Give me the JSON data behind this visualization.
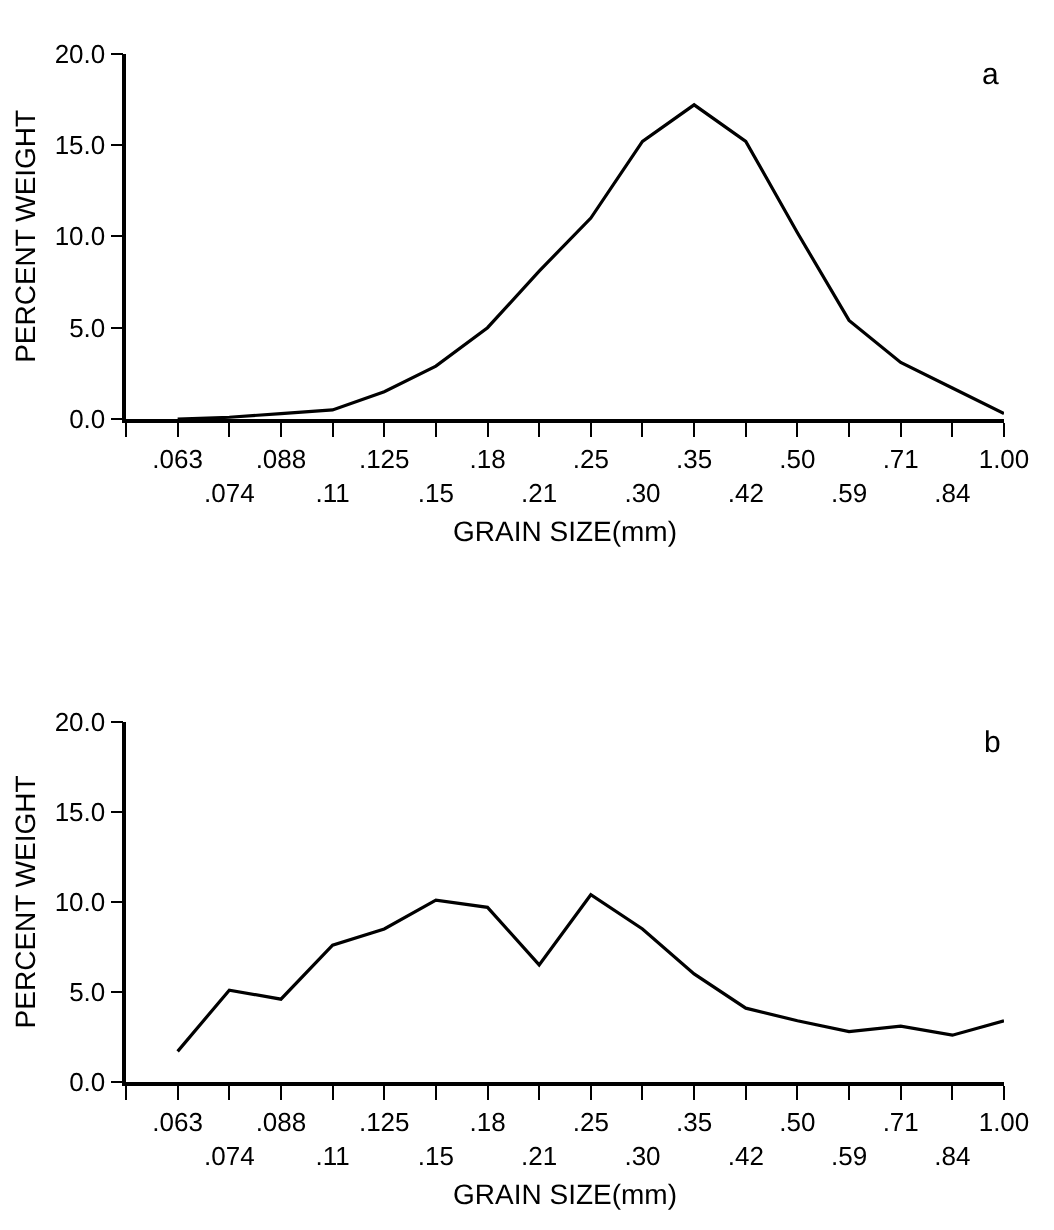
{
  "chart_data": [
    {
      "type": "line",
      "xlabel": "GRAIN SIZE(mm)",
      "ylabel": "PERCENT WEIGHT",
      "annotations": [
        "a"
      ],
      "categories": [
        null,
        ".063",
        ".074",
        ".088",
        ".11",
        ".125",
        ".15",
        ".18",
        ".21",
        ".25",
        ".30",
        ".35",
        ".42",
        ".50",
        ".59",
        ".71",
        ".84",
        "1.00"
      ],
      "series": [
        {
          "color": "#000000",
          "values": [
            null,
            0.0,
            0.1,
            0.3,
            0.5,
            1.5,
            2.9,
            5.0,
            8.1,
            11.0,
            15.2,
            17.2,
            15.2,
            10.2,
            5.4,
            3.1,
            1.7,
            0.3
          ]
        }
      ],
      "ylim": [
        0,
        20
      ],
      "yticks": [
        {
          "value": 0,
          "label": "0.0"
        },
        {
          "value": 5,
          "label": "5.0"
        },
        {
          "value": 10,
          "label": "10.0"
        },
        {
          "value": 15,
          "label": "15.0"
        },
        {
          "value": 20,
          "label": "20.0"
        }
      ],
      "marker": "none",
      "line_style": "solid"
    },
    {
      "type": "line",
      "xlabel": "GRAIN SIZE(mm)",
      "ylabel": "PERCENT WEIGHT",
      "annotations": [
        "b"
      ],
      "categories": [
        null,
        ".063",
        ".074",
        ".088",
        ".11",
        ".125",
        ".15",
        ".18",
        ".21",
        ".25",
        ".30",
        ".35",
        ".42",
        ".50",
        ".59",
        ".71",
        ".84",
        "1.00"
      ],
      "series": [
        {
          "color": "#000000",
          "values": [
            null,
            1.7,
            5.1,
            4.6,
            7.6,
            8.5,
            10.1,
            9.7,
            6.5,
            10.4,
            8.5,
            6.0,
            4.1,
            3.4,
            2.8,
            3.1,
            2.6,
            3.4
          ]
        }
      ],
      "ylim": [
        0,
        20
      ],
      "yticks": [
        {
          "value": 0,
          "label": "0.0"
        },
        {
          "value": 5,
          "label": "5.0"
        },
        {
          "value": 10,
          "label": "10.0"
        },
        {
          "value": 15,
          "label": "15.0"
        },
        {
          "value": 20,
          "label": "20.0"
        }
      ],
      "marker": "none",
      "line_style": "solid"
    }
  ]
}
